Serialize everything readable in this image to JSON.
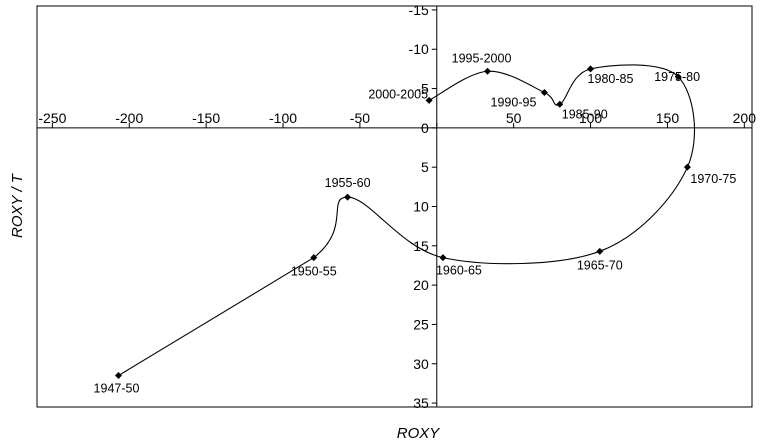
{
  "chart_data": {
    "type": "line",
    "title": "",
    "xlabel": "ROXY",
    "ylabel": "ROXY /   T",
    "xlim": [
      -260,
      205
    ],
    "ylim": [
      -15.5,
      35.5
    ],
    "y_inverted": true,
    "grid": false,
    "x_ticks": [
      -250,
      -200,
      -150,
      -100,
      -50,
      0,
      50,
      100,
      150,
      200
    ],
    "y_ticks": [
      -15,
      -10,
      -5,
      0,
      5,
      10,
      15,
      20,
      25,
      30,
      35
    ],
    "x_tick_labels": [
      "-250",
      "-200",
      "-150",
      "-100",
      "-50",
      "0",
      "50",
      "100",
      "150",
      "200"
    ],
    "y_tick_labels": [
      "-15",
      "-10",
      "-5",
      "0",
      "5",
      "10",
      "15",
      "20",
      "25",
      "30",
      "35"
    ],
    "points": [
      {
        "label": "1947-50",
        "x": -207,
        "y": 31.5
      },
      {
        "label": "1950-55",
        "x": -80,
        "y": 16.5
      },
      {
        "label": "1955-60",
        "x": -58,
        "y": 8.8
      },
      {
        "label": "1960-65",
        "x": 4,
        "y": 16.5
      },
      {
        "label": "1965-70",
        "x": 106,
        "y": 15.7
      },
      {
        "label": "1970-75",
        "x": 163,
        "y": 5
      },
      {
        "label": "1975-80",
        "x": 157,
        "y": -6.5
      },
      {
        "label": "1980-85",
        "x": 100,
        "y": -7.5
      },
      {
        "label": "1985-90",
        "x": 80,
        "y": -3
      },
      {
        "label": "1990-95",
        "x": 70,
        "y": -4.5
      },
      {
        "label": "1995-2000",
        "x": 33,
        "y": -7.2
      },
      {
        "label": "2000-2005",
        "x": -5,
        "y": -3.5
      }
    ]
  }
}
